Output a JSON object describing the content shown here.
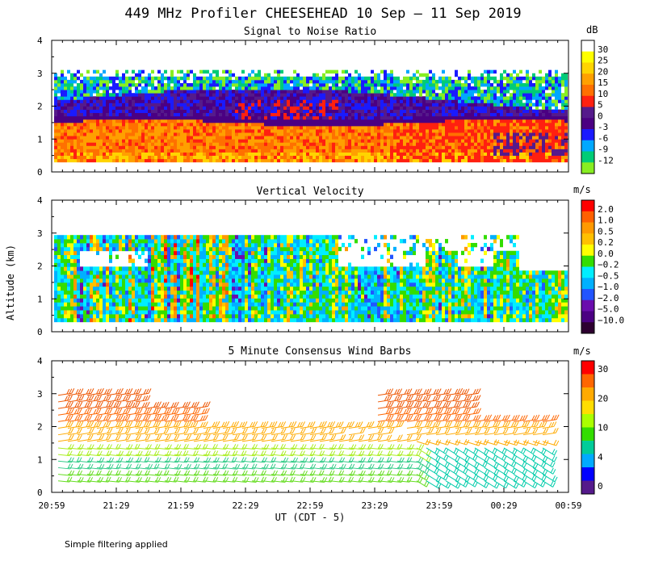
{
  "figure": {
    "title": "449 MHz Profiler CHEESEHEAD 10 Sep – 11 Sep 2019",
    "ylabel": "Altitude (km)",
    "xlabel": "UT  (CDT - 5)",
    "footer": "Simple filtering applied"
  },
  "chart_data": [
    {
      "type": "heatmap",
      "title": "Signal to Noise Ratio",
      "units": "dB",
      "x_ticks": [
        "20:59",
        "21:29",
        "21:59",
        "22:29",
        "22:59",
        "23:29",
        "23:59",
        "00:29",
        "00:59"
      ],
      "y_ticks": [
        "0",
        "1",
        "2",
        "3",
        "4"
      ],
      "ylim": [
        0,
        4
      ],
      "colorbar": {
        "labels": [
          "30",
          "25",
          "20",
          "15",
          "10",
          "5",
          "0",
          "-3",
          "-6",
          "-9",
          "-12"
        ],
        "colors": [
          "#ffffff",
          "#ffff00",
          "#ffd400",
          "#ffa000",
          "#ff7000",
          "#ff2010",
          "#551a8b",
          "#4b0082",
          "#1a1aff",
          "#00a8ff",
          "#00cc77",
          "#88ee22"
        ]
      },
      "description_layers_km": [
        {
          "range": [
            0.3,
            1.5
          ],
          "class": "15-25 dB (high SNR boundary layer)"
        },
        {
          "range": [
            1.5,
            2.4
          ],
          "class": "0-10 dB"
        },
        {
          "range": [
            2.4,
            3.1
          ],
          "class": "-12 to -3 dB"
        }
      ]
    },
    {
      "type": "heatmap",
      "title": "Vertical Velocity",
      "units": "m/s",
      "x_ticks": [
        "20:59",
        "21:29",
        "21:59",
        "22:29",
        "22:59",
        "23:29",
        "23:59",
        "00:29",
        "00:59"
      ],
      "y_ticks": [
        "0",
        "1",
        "2",
        "3",
        "4"
      ],
      "ylim": [
        0,
        4
      ],
      "colorbar": {
        "labels": [
          "2.0",
          "1.0",
          "0.5",
          "0.2",
          "0.0",
          "−0.2",
          "−0.5",
          "−1.0",
          "−2.0",
          "−5.0",
          "−10.0"
        ],
        "colors": [
          "#ff0000",
          "#ff6000",
          "#ff9900",
          "#ffc000",
          "#ffff00",
          "#33dd00",
          "#00eeff",
          "#00b0ff",
          "#2255ff",
          "#6a0dad",
          "#4b0082",
          "#2d0030"
        ]
      }
    },
    {
      "type": "scatter",
      "title": "5 Minute Consensus Wind Barbs",
      "units": "m/s",
      "x_ticks": [
        "20:59",
        "21:29",
        "21:59",
        "22:29",
        "22:59",
        "23:29",
        "23:59",
        "00:29",
        "00:59"
      ],
      "y_ticks": [
        "0",
        "1",
        "2",
        "3",
        "4"
      ],
      "ylim": [
        0,
        4
      ],
      "heights_km": [
        0.35,
        0.55,
        0.75,
        0.95,
        1.15,
        1.35,
        1.55,
        1.75,
        1.95,
        2.15,
        2.35,
        2.55,
        2.75,
        2.95
      ],
      "colorbar": {
        "labels": [
          "30",
          "20",
          "10",
          "4",
          "0"
        ],
        "colors": [
          "#ff0000",
          "#ff6600",
          "#ffaa00",
          "#ffdd00",
          "#aaff00",
          "#33dd00",
          "#00cc99",
          "#00aaff",
          "#0000ff",
          "#551a8b"
        ]
      }
    }
  ]
}
